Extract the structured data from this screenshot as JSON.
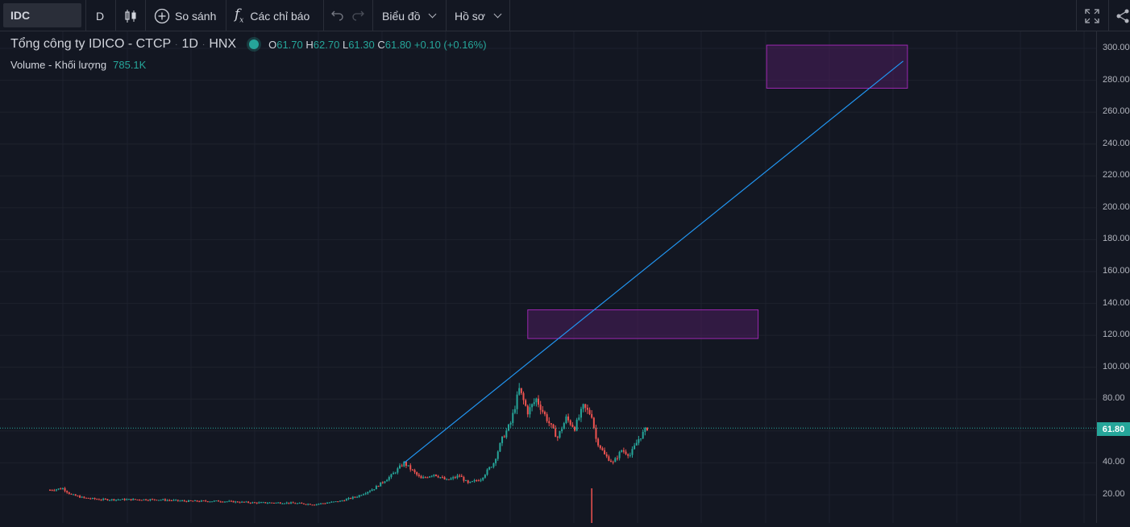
{
  "toolbar": {
    "symbol": "IDC",
    "interval": "D",
    "compare_label": "So sánh",
    "indicators_label": "Các chỉ báo",
    "chart_label": "Biểu đồ",
    "profile_label": "Hồ sơ"
  },
  "legend": {
    "title": "Tổng công ty IDICO - CTCP",
    "interval": "1D",
    "exchange": "HNX",
    "open_key": "O",
    "open": "61.70",
    "high_key": "H",
    "high": "62.70",
    "low_key": "L",
    "low": "61.30",
    "close_key": "C",
    "close": "61.80",
    "change": "+0.10 (+0.16%)",
    "volume_label": "Volume - Khối lượng",
    "volume_value": "785.1K"
  },
  "price_axis": {
    "ticks": [
      "300.00",
      "280.00",
      "260.00",
      "240.00",
      "220.00",
      "200.00",
      "180.00",
      "160.00",
      "140.00",
      "120.00",
      "100.00",
      "80.00",
      "40.00",
      "20.00"
    ],
    "tick_values": [
      300,
      280,
      260,
      240,
      220,
      200,
      180,
      160,
      140,
      120,
      100,
      80,
      40,
      20
    ],
    "last_price": "61.80",
    "last_price_value": 61.8
  },
  "colors": {
    "up": "#26a69a",
    "down": "#ef5350",
    "trendline": "#2196f3",
    "rect_border": "#9c27b0",
    "rect_fill": "#4a1d5c"
  },
  "chart_data": {
    "type": "candlestick",
    "last_price": 61.8,
    "price_path": [
      [
        0,
        23
      ],
      [
        3,
        24
      ],
      [
        5,
        20
      ],
      [
        8,
        18
      ],
      [
        12,
        17
      ],
      [
        18,
        17
      ],
      [
        25,
        17
      ],
      [
        32,
        16
      ],
      [
        40,
        16
      ],
      [
        48,
        15
      ],
      [
        55,
        15
      ],
      [
        62,
        14
      ],
      [
        68,
        16
      ],
      [
        72,
        19
      ],
      [
        76,
        24
      ],
      [
        80,
        32
      ],
      [
        83,
        40
      ],
      [
        85,
        35
      ],
      [
        87,
        30
      ],
      [
        90,
        33
      ],
      [
        93,
        29
      ],
      [
        96,
        32
      ],
      [
        98,
        27
      ],
      [
        101,
        30
      ],
      [
        104,
        40
      ],
      [
        106,
        55
      ],
      [
        108,
        65
      ],
      [
        110,
        86
      ],
      [
        112,
        72
      ],
      [
        114,
        80
      ],
      [
        116,
        70
      ],
      [
        118,
        60
      ],
      [
        119,
        56
      ],
      [
        121,
        68
      ],
      [
        123,
        62
      ],
      [
        125,
        75
      ],
      [
        127,
        70
      ],
      [
        128,
        55
      ],
      [
        130,
        45
      ],
      [
        132,
        40
      ],
      [
        134,
        48
      ],
      [
        136,
        45
      ],
      [
        138,
        55
      ],
      [
        140,
        62
      ]
    ],
    "volume_spike": {
      "x": 127,
      "value": 0.8
    },
    "trendline": {
      "from": [
        83,
        40
      ],
      "to": [
        200,
        292
      ]
    },
    "rectangles": [
      {
        "x0": 112,
        "x1": 166,
        "y0": 118,
        "y1": 136
      },
      {
        "x0": 168,
        "x1": 201,
        "y0": 275,
        "y1": 302
      }
    ],
    "x_range": [
      0,
      210
    ],
    "y_range": [
      10,
      305
    ]
  }
}
